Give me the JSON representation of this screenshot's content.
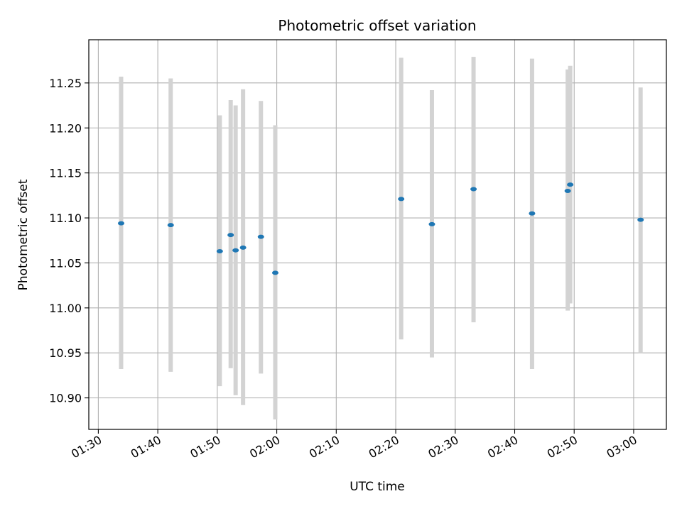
{
  "chart_data": {
    "type": "scatter",
    "title": "Photometric offset variation",
    "xlabel": "UTC time",
    "ylabel": "Photometric offset",
    "grid": true,
    "xlim_minutes": [
      88.4,
      185.5
    ],
    "ylim": [
      10.865,
      11.298
    ],
    "x_ticks": [
      {
        "label": "01:30",
        "minutes": 90
      },
      {
        "label": "01:40",
        "minutes": 100
      },
      {
        "label": "01:50",
        "minutes": 110
      },
      {
        "label": "02:00",
        "minutes": 120
      },
      {
        "label": "02:10",
        "minutes": 130
      },
      {
        "label": "02:20",
        "minutes": 140
      },
      {
        "label": "02:30",
        "minutes": 150
      },
      {
        "label": "02:40",
        "minutes": 160
      },
      {
        "label": "02:50",
        "minutes": 170
      },
      {
        "label": "03:00",
        "minutes": 180
      }
    ],
    "y_ticks": [
      "10.90",
      "10.95",
      "11.00",
      "11.05",
      "11.10",
      "11.15",
      "11.20",
      "11.25"
    ],
    "colors": {
      "point": "#1f77b4",
      "errorbar": "#d3d3d3",
      "grid": "#b0b0b0"
    },
    "points": [
      {
        "time": "01:33:50",
        "y": 11.094,
        "ylow": 10.932,
        "yhigh": 11.257
      },
      {
        "time": "01:42:10",
        "y": 11.092,
        "ylow": 10.929,
        "yhigh": 11.255
      },
      {
        "time": "01:50:25",
        "y": 11.063,
        "ylow": 10.913,
        "yhigh": 11.214
      },
      {
        "time": "01:52:15",
        "y": 11.081,
        "ylow": 10.933,
        "yhigh": 11.231
      },
      {
        "time": "01:53:05",
        "y": 11.064,
        "ylow": 10.903,
        "yhigh": 11.225
      },
      {
        "time": "01:54:20",
        "y": 11.067,
        "ylow": 10.892,
        "yhigh": 11.243
      },
      {
        "time": "01:57:20",
        "y": 11.079,
        "ylow": 10.927,
        "yhigh": 11.23
      },
      {
        "time": "01:59:45",
        "y": 11.039,
        "ylow": 10.876,
        "yhigh": 11.203
      },
      {
        "time": "02:20:55",
        "y": 11.121,
        "ylow": 10.965,
        "yhigh": 11.278
      },
      {
        "time": "02:26:05",
        "y": 11.093,
        "ylow": 10.945,
        "yhigh": 11.242
      },
      {
        "time": "02:33:05",
        "y": 11.132,
        "ylow": 10.984,
        "yhigh": 11.279
      },
      {
        "time": "02:42:55",
        "y": 11.105,
        "ylow": 10.932,
        "yhigh": 11.277
      },
      {
        "time": "02:48:55",
        "y": 11.13,
        "ylow": 10.997,
        "yhigh": 11.265
      },
      {
        "time": "02:49:20",
        "y": 11.137,
        "ylow": 11.005,
        "yhigh": 11.269
      },
      {
        "time": "03:01:10",
        "y": 11.098,
        "ylow": 10.95,
        "yhigh": 11.245
      }
    ]
  }
}
